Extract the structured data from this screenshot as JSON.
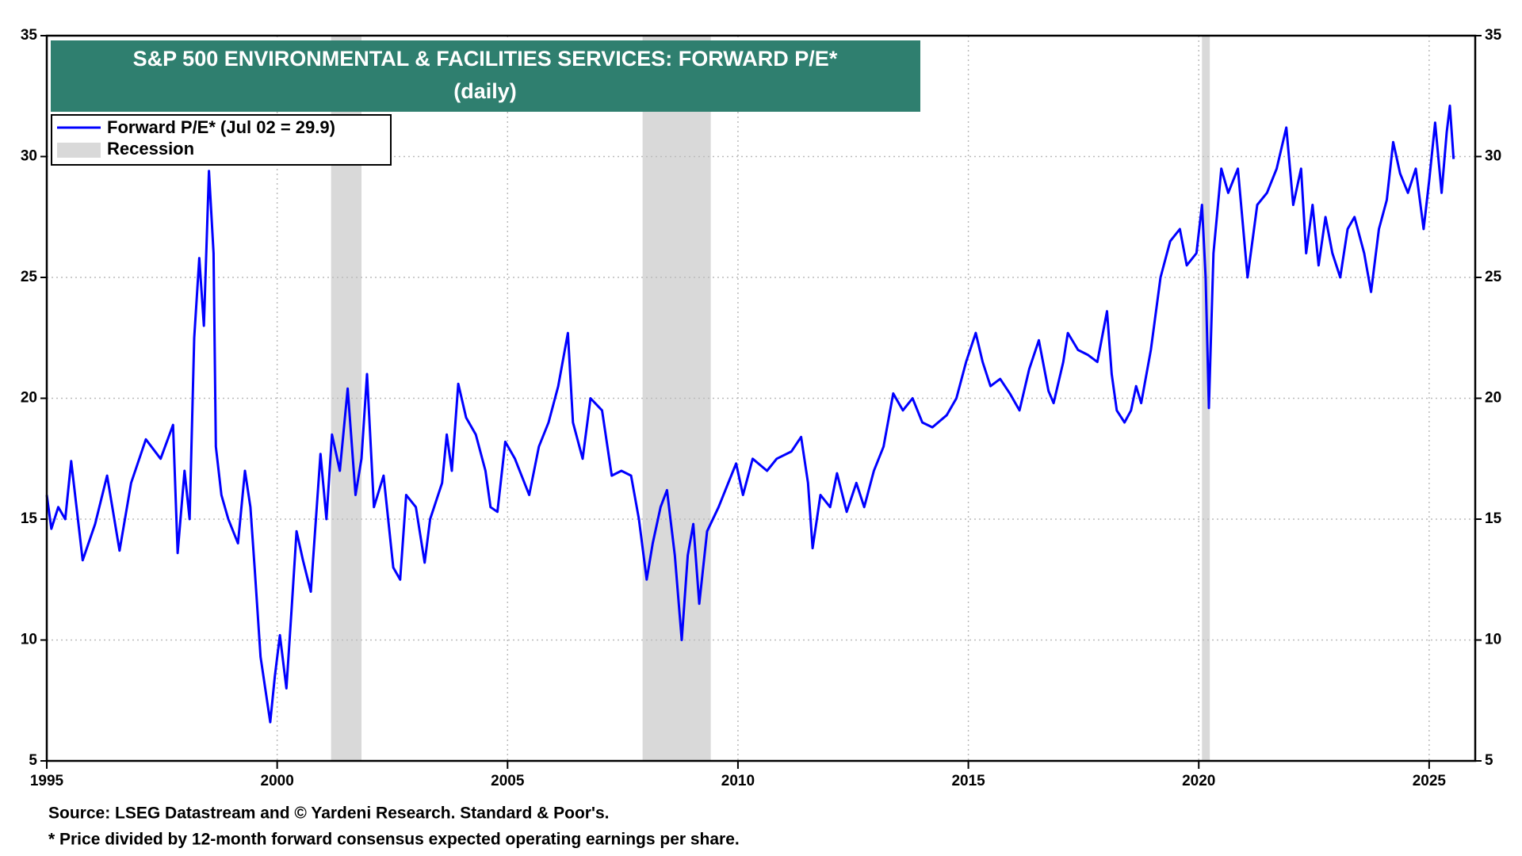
{
  "chart_data": {
    "type": "line",
    "title": "S&P 500 ENVIRONMENTAL & FACILITIES SERVICES: FORWARD P/E*",
    "subtitle": "(daily)",
    "footnotes": [
      "Source: LSEG Datastream and © Yardeni Research. Standard & Poor's.",
      "* Price divided by 12-month forward consensus expected operating earnings per share."
    ],
    "xlim": [
      1995,
      2026
    ],
    "xticks": [
      1995,
      2000,
      2005,
      2010,
      2015,
      2020,
      2025
    ],
    "ylim": [
      5,
      35
    ],
    "yticks": [
      5,
      10,
      15,
      20,
      25,
      30,
      35
    ],
    "y2lim": [
      5,
      35
    ],
    "y2ticks": [
      5,
      10,
      15,
      20,
      25,
      30,
      35
    ],
    "grid": true,
    "legend": "upper left",
    "recession": {
      "name": "Recession",
      "color": "#d9d9d9",
      "periods": [
        [
          2001.17,
          2001.83
        ],
        [
          2007.93,
          2009.41
        ],
        [
          2020.07,
          2020.24
        ]
      ]
    },
    "x": [
      1995.0,
      1995.1,
      1995.25,
      1995.4,
      1995.53,
      1995.78,
      1996.05,
      1996.31,
      1996.58,
      1996.83,
      1997.15,
      1997.47,
      1997.74,
      1997.84,
      1997.99,
      1998.1,
      1998.2,
      1998.31,
      1998.41,
      1998.52,
      1998.62,
      1998.67,
      1998.79,
      1998.94,
      1999.15,
      1999.3,
      1999.42,
      1999.51,
      1999.64,
      1999.85,
      1999.95,
      2000.06,
      2000.2,
      2000.31,
      2000.42,
      2000.56,
      2000.73,
      2000.94,
      2001.07,
      2001.19,
      2001.36,
      2001.53,
      2001.7,
      2001.83,
      2001.95,
      2002.1,
      2002.31,
      2002.52,
      2002.67,
      2002.8,
      2003.01,
      2003.2,
      2003.32,
      2003.58,
      2003.68,
      2003.79,
      2003.93,
      2004.1,
      2004.31,
      2004.52,
      2004.63,
      2004.78,
      2004.95,
      2005.16,
      2005.47,
      2005.68,
      2005.89,
      2006.1,
      2006.31,
      2006.42,
      2006.63,
      2006.8,
      2007.05,
      2007.26,
      2007.47,
      2007.68,
      2007.85,
      2008.02,
      2008.15,
      2008.32,
      2008.46,
      2008.63,
      2008.78,
      2008.91,
      2009.03,
      2009.16,
      2009.33,
      2009.58,
      2009.79,
      2009.96,
      2010.11,
      2010.32,
      2010.63,
      2010.84,
      2011.16,
      2011.37,
      2011.52,
      2011.62,
      2011.79,
      2012.0,
      2012.15,
      2012.36,
      2012.57,
      2012.74,
      2012.95,
      2013.16,
      2013.37,
      2013.58,
      2013.79,
      2014.0,
      2014.22,
      2014.53,
      2014.74,
      2014.95,
      2015.16,
      2015.31,
      2015.48,
      2015.69,
      2015.9,
      2016.11,
      2016.32,
      2016.53,
      2016.74,
      2016.85,
      2017.06,
      2017.16,
      2017.38,
      2017.59,
      2017.8,
      2018.01,
      2018.11,
      2018.22,
      2018.39,
      2018.53,
      2018.64,
      2018.75,
      2018.96,
      2019.17,
      2019.38,
      2019.59,
      2019.74,
      2019.95,
      2020.07,
      2020.15,
      2020.22,
      2020.32,
      2020.49,
      2020.64,
      2020.85,
      2021.06,
      2021.27,
      2021.48,
      2021.69,
      2021.9,
      2022.05,
      2022.22,
      2022.33,
      2022.47,
      2022.6,
      2022.75,
      2022.9,
      2023.07,
      2023.23,
      2023.38,
      2023.59,
      2023.74,
      2023.91,
      2024.08,
      2024.22,
      2024.37,
      2024.54,
      2024.71,
      2024.88,
      2025.0,
      2025.13,
      2025.27,
      2025.38,
      2025.45,
      2025.53
    ],
    "series": [
      {
        "name": "Forward P/E* (Jul 02 = 29.9)",
        "color": "#0000ff",
        "values": [
          16,
          14.6,
          15.5,
          15.0,
          17.4,
          13.3,
          14.8,
          16.8,
          13.7,
          16.5,
          18.3,
          17.5,
          18.9,
          13.6,
          17,
          15,
          22.5,
          25.8,
          23,
          29.4,
          26,
          18,
          16,
          15,
          14,
          17,
          15.5,
          13,
          9.3,
          6.6,
          8.5,
          10.2,
          8,
          11.2,
          14.5,
          13.3,
          12,
          17.7,
          15,
          18.5,
          17,
          20.4,
          16,
          17.5,
          21,
          15.5,
          16.8,
          13,
          12.5,
          16,
          15.5,
          13.2,
          15,
          16.5,
          18.5,
          17,
          20.6,
          19.2,
          18.5,
          17,
          15.5,
          15.3,
          18.2,
          17.5,
          16,
          18,
          19,
          20.5,
          22.7,
          19,
          17.5,
          20,
          19.5,
          16.8,
          17,
          16.8,
          15,
          12.5,
          14,
          15.5,
          16.2,
          13.5,
          10,
          13.5,
          14.8,
          11.5,
          14.5,
          15.5,
          16.5,
          17.3,
          16,
          17.5,
          17,
          17.5,
          17.8,
          18.4,
          16.5,
          13.8,
          16,
          15.5,
          16.9,
          15.3,
          16.5,
          15.5,
          17,
          18,
          20.2,
          19.5,
          20,
          19,
          18.8,
          19.3,
          20,
          21.5,
          22.7,
          21.5,
          20.5,
          20.8,
          20.2,
          19.5,
          21.2,
          22.4,
          20.3,
          19.8,
          21.5,
          22.7,
          22,
          21.8,
          21.5,
          23.6,
          21,
          19.5,
          19,
          19.5,
          20.5,
          19.8,
          22,
          25,
          26.5,
          27,
          25.5,
          26,
          28,
          25,
          19.6,
          26,
          29.5,
          28.5,
          29.5,
          25,
          28,
          28.5,
          29.5,
          31.2,
          28,
          29.5,
          26,
          28,
          25.5,
          27.5,
          26,
          25,
          27,
          27.5,
          26,
          24.4,
          27,
          28.2,
          30.6,
          29.3,
          28.5,
          29.5,
          27,
          29,
          31.4,
          28.5,
          31,
          32.1,
          29.9
        ]
      }
    ]
  }
}
